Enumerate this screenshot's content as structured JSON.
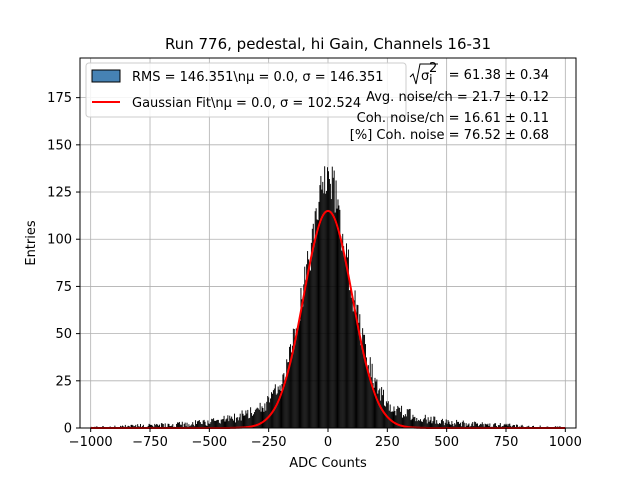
{
  "chart_data": {
    "type": "bar",
    "title": "Run 776, pedestal, hi Gain, Channels 16-31",
    "xlabel": "ADC Counts",
    "ylabel": "Entries",
    "xlim": [
      -1045,
      1045
    ],
    "ylim": [
      0,
      196
    ],
    "xticks": [
      -1000,
      -750,
      -500,
      -250,
      0,
      250,
      500,
      750,
      1000
    ],
    "yticks": [
      0,
      25,
      50,
      75,
      100,
      125,
      150,
      175
    ],
    "grid": true,
    "legend_placement": "top-left",
    "histogram": {
      "name": "RMS = 146.351\\n$\\mu$ = 0.0, $\\sigma$ = 146.351",
      "legend_text": "RMS = 146.351\\nμ = 0.0, σ = 146.351",
      "fill_color": "#4682b4",
      "bar_color": "#000000",
      "x": [
        -1000,
        -900,
        -800,
        -700,
        -600,
        -500,
        -450,
        -400,
        -350,
        -300,
        -275,
        -250,
        -225,
        -200,
        -175,
        -150,
        -125,
        -100,
        -75,
        -50,
        -25,
        -10,
        0,
        10,
        25,
        50,
        75,
        100,
        125,
        150,
        175,
        200,
        225,
        250,
        275,
        300,
        350,
        400,
        450,
        500,
        600,
        700,
        800,
        900,
        980
      ],
      "values": [
        0.3,
        0.5,
        1,
        1.5,
        2,
        3,
        4,
        5,
        7,
        9,
        11,
        14,
        18,
        24,
        33,
        44,
        58,
        75,
        92,
        110,
        125,
        133,
        137,
        133,
        125,
        110,
        92,
        75,
        58,
        44,
        33,
        24,
        18,
        14,
        11,
        9,
        7,
        5,
        4,
        3,
        2,
        1.5,
        1,
        0.5,
        0.3
      ]
    },
    "fit": {
      "name": "Gaussian Fit\\n$\\mu$ = 0.0, $\\sigma$ = 102.524",
      "legend_text": "Gaussian Fit\\nμ = 0.0, σ = 102.524",
      "color": "#ff0000",
      "mu": 0.0,
      "sigma": 102.524,
      "amplitude": 115
    },
    "annotations": [
      {
        "prefix": "√(σ",
        "suffix": ") = 61.38 ± 0.34",
        "text": "√(σ_i²) = 61.38 ± 0.34"
      },
      {
        "text": "Avg. noise/ch = 21.7 ± 0.12"
      },
      {
        "text": "Coh. noise/ch = 16.61 ± 0.11"
      },
      {
        "text": "[%] Coh. noise = 76.52 ± 0.68"
      }
    ]
  }
}
